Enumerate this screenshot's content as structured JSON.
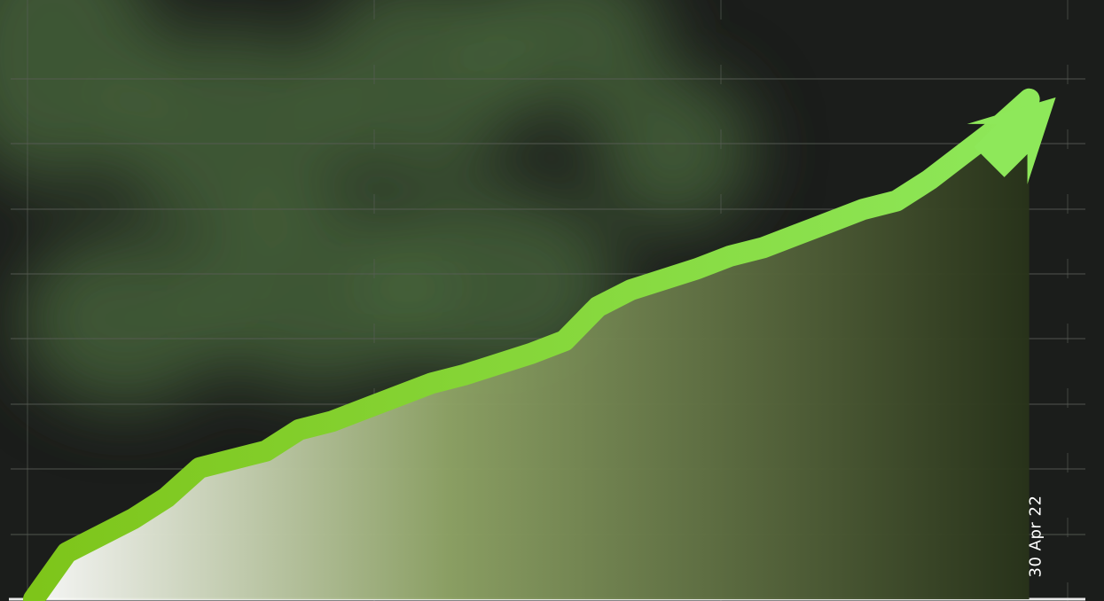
{
  "colors": {
    "background": "#1b1d1b",
    "blob": "#4a6a3e",
    "grid": "#5a5f58",
    "line": "#7ec51a",
    "line_highlight": "#8ee85a",
    "area_light": "#ffffff",
    "area_mid": "#8ea365",
    "area_dark": "#28331a",
    "date_text": "#ffffff"
  },
  "icons": [
    "arrow-up-right-icon"
  ],
  "chart_data": {
    "type": "area",
    "title": "",
    "xlabel": "",
    "ylabel": "",
    "grid": true,
    "trend": "up",
    "x": [
      0,
      1,
      3,
      4,
      5,
      7,
      8,
      9,
      10,
      11,
      12,
      13,
      15,
      16,
      17,
      18,
      20,
      21,
      22,
      23,
      24,
      25,
      26,
      27,
      28,
      29,
      30
    ],
    "y": [
      0,
      11,
      19,
      24,
      31,
      35,
      40,
      42,
      45,
      48,
      51,
      53,
      58,
      61,
      69,
      73,
      78,
      81,
      83,
      86,
      89,
      92,
      94,
      99,
      105,
      111,
      118
    ],
    "xlim": [
      0,
      31
    ],
    "ylim": [
      0,
      128
    ],
    "annotations": [
      {
        "text": "30 Apr 22",
        "orientation": "vertical"
      }
    ]
  }
}
